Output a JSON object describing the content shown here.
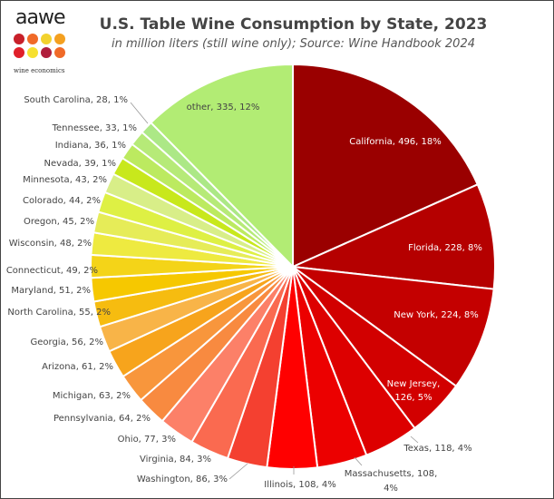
{
  "logo": {
    "word": "aawe",
    "tagline": "wine economics",
    "dot_colors": [
      "#c8202a",
      "#f06a28",
      "#f2d22e",
      "#f4a020",
      "#e0202a",
      "#f6e030",
      "#b01e3c",
      "#f06a28"
    ]
  },
  "chart_data": {
    "type": "pie",
    "title": "U.S. Table Wine Consumption by State, 2023",
    "subtitle": "in million liters (still wine only); Source: Wine Handbook 2024",
    "unit": "million liters",
    "direction": "clockwise from top",
    "slices": [
      {
        "label": "California",
        "value": 496,
        "percent": "18%",
        "color": "#9a0000"
      },
      {
        "label": "Florida",
        "value": 228,
        "percent": "8%",
        "color": "#b50000"
      },
      {
        "label": "New York",
        "value": 224,
        "percent": "8%",
        "color": "#c40000"
      },
      {
        "label": "New Jersey",
        "value": 126,
        "percent": "5%",
        "color": "#d20000"
      },
      {
        "label": "Texas",
        "value": 118,
        "percent": "4%",
        "color": "#dd0000"
      },
      {
        "label": "Massachusetts",
        "value": 108,
        "percent": "4%",
        "color": "#ec0000"
      },
      {
        "label": "Illinois",
        "value": 108,
        "percent": "4%",
        "color": "#ff0000"
      },
      {
        "label": "Washington",
        "value": 86,
        "percent": "3%",
        "color": "#f44030"
      },
      {
        "label": "Virginia",
        "value": 84,
        "percent": "3%",
        "color": "#fa6a50"
      },
      {
        "label": "Ohio",
        "value": 77,
        "percent": "3%",
        "color": "#fc8068"
      },
      {
        "label": "Pennsylvania",
        "value": 64,
        "percent": "2%",
        "color": "#f88a40"
      },
      {
        "label": "Michigan",
        "value": 63,
        "percent": "2%",
        "color": "#f8963c"
      },
      {
        "label": "Arizona",
        "value": 61,
        "percent": "2%",
        "color": "#f7a41c"
      },
      {
        "label": "Georgia",
        "value": 56,
        "percent": "2%",
        "color": "#f8b448"
      },
      {
        "label": "North Carolina",
        "value": 55,
        "percent": "2%",
        "color": "#f6bc10"
      },
      {
        "label": "Maryland",
        "value": 51,
        "percent": "2%",
        "color": "#f6c800"
      },
      {
        "label": "Connecticut",
        "value": 49,
        "percent": "2%",
        "color": "#f4d418"
      },
      {
        "label": "Wisconsin",
        "value": 48,
        "percent": "2%",
        "color": "#eeea40"
      },
      {
        "label": "Oregon",
        "value": 45,
        "percent": "2%",
        "color": "#e6ec58"
      },
      {
        "label": "Colorado",
        "value": 44,
        "percent": "2%",
        "color": "#def044"
      },
      {
        "label": "Minnesota",
        "value": 43,
        "percent": "2%",
        "color": "#d8ee88"
      },
      {
        "label": "Nevada",
        "value": 39,
        "percent": "1%",
        "color": "#c8e81c"
      },
      {
        "label": "Indiana",
        "value": 36,
        "percent": "1%",
        "color": "#bcea60"
      },
      {
        "label": "Tennessee",
        "value": 33,
        "percent": "1%",
        "color": "#b6ea78"
      },
      {
        "label": "South Carolina",
        "value": 28,
        "percent": "1%",
        "color": "#ace886"
      },
      {
        "label": "other",
        "value": 335,
        "percent": "12%",
        "color": "#b2ec74"
      }
    ]
  }
}
